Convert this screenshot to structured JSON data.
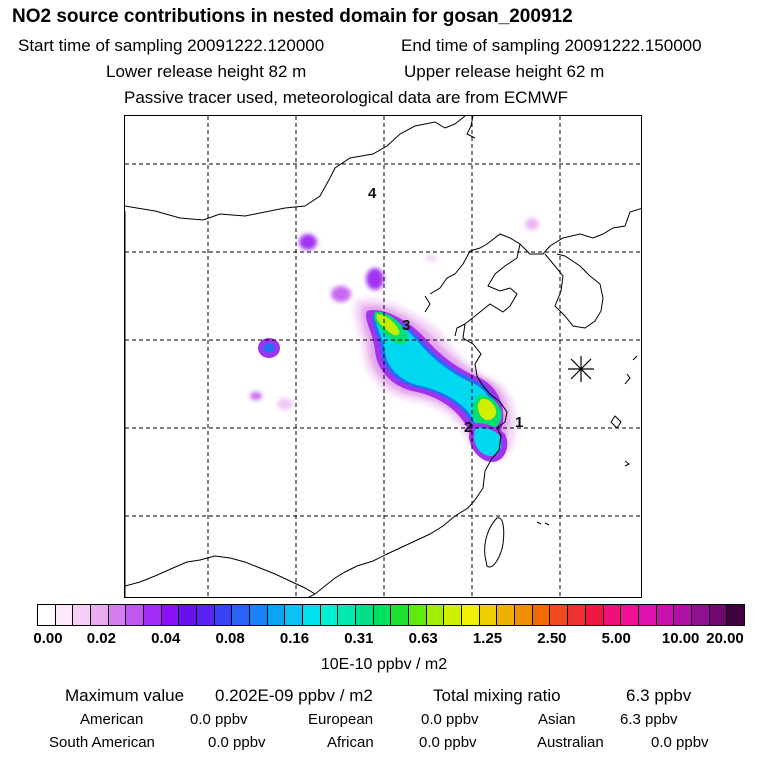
{
  "header": {
    "title": "NO2 source contributions in nested domain for gosan_200912",
    "start_time": "Start time of sampling 20091222.120000",
    "end_time": "End time of sampling 20091222.150000",
    "lower_height": "Lower release height   82 m",
    "upper_height": "Upper release height   62 m",
    "note": "Passive tracer used, meteorological data are from ECMWF"
  },
  "map": {
    "receptor_marker": "receptor-star",
    "source_labels": [
      "1",
      "2",
      "3",
      "4"
    ]
  },
  "colorbar": {
    "colors": [
      "#ffffff",
      "#fbe8fb",
      "#f5cef5",
      "#eaaaf0",
      "#d67ef0",
      "#c057f0",
      "#a32ef5",
      "#8a10f5",
      "#6a10f0",
      "#5a22f5",
      "#3a42f5",
      "#2a62f5",
      "#1a82f5",
      "#0aa4f5",
      "#0ac2f5",
      "#00e0f0",
      "#00f0d2",
      "#00eab0",
      "#00e088",
      "#00e060",
      "#20e030",
      "#60ea10",
      "#a0f000",
      "#d0f000",
      "#f0f000",
      "#f0d000",
      "#f0b000",
      "#f09000",
      "#f06a00",
      "#f04a20",
      "#f03030",
      "#f01840",
      "#f0107a",
      "#f01098",
      "#e010b0",
      "#c810b0",
      "#b010a8",
      "#901090",
      "#700870",
      "#400040"
    ],
    "tick_labels": [
      "0.00",
      "0.02",
      "0.04",
      "0.08",
      "0.16",
      "0.31",
      "0.63",
      "1.25",
      "2.50",
      "5.00",
      "10.00",
      "20.00"
    ],
    "unit": "10E-10 ppbv / m2"
  },
  "stats": {
    "max_label": "Maximum value",
    "max_value": "0.202E-09 ppbv / m2",
    "total_label": "Total mixing ratio",
    "total_value": "6.3 ppbv"
  },
  "regions": [
    {
      "name": "American",
      "value": "0.0 ppbv"
    },
    {
      "name": "European",
      "value": "0.0 ppbv"
    },
    {
      "name": "Asian",
      "value": "6.3 ppbv"
    },
    {
      "name": "South American",
      "value": "0.0 ppbv"
    },
    {
      "name": "African",
      "value": "0.0 ppbv"
    },
    {
      "name": "Australian",
      "value": "0.0 ppbv"
    }
  ]
}
